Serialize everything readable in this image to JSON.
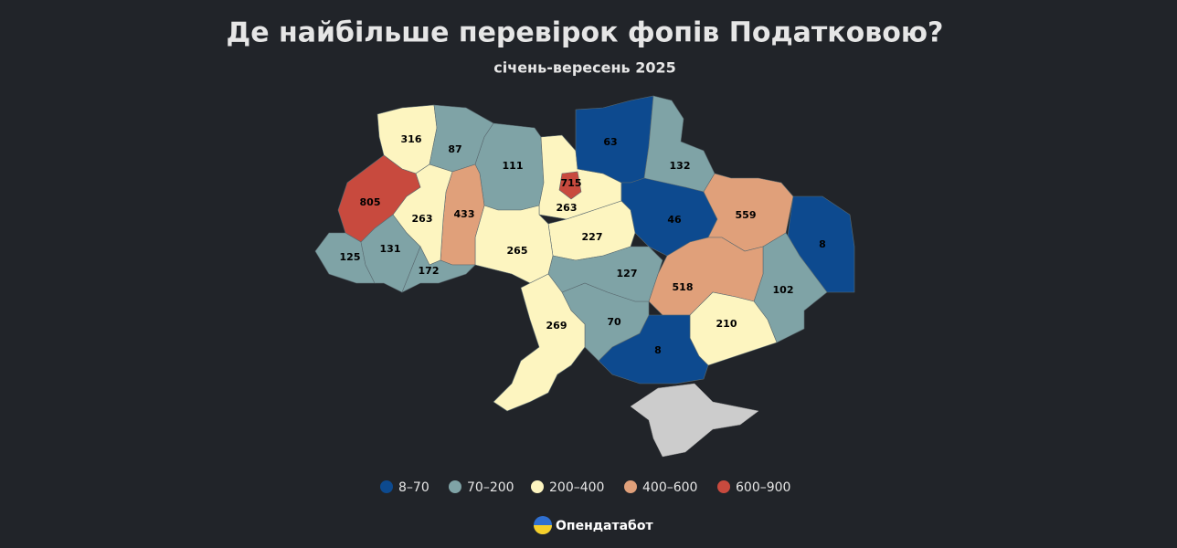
{
  "title": "Де найбільше перевірок фопів Податковою?",
  "subtitle": "січень-вересень 2025",
  "regions": [
    {
      "value": 316,
      "color": "#fdf5c0"
    },
    {
      "value": 87,
      "color": "#7fa3a6"
    },
    {
      "value": 111,
      "color": "#7fa3a6"
    },
    {
      "value": 263,
      "color": "#fdf5c0"
    },
    {
      "value": 715,
      "color": "#c84a3e"
    },
    {
      "value": 63,
      "color": "#0d4a8f"
    },
    {
      "value": 132,
      "color": "#7fa3a6"
    },
    {
      "value": 46,
      "color": "#0d4a8f"
    },
    {
      "value": 559,
      "color": "#e0a07a"
    },
    {
      "value": 8,
      "color": "#0d4a8f"
    },
    {
      "value": 102,
      "color": "#7fa3a6"
    },
    {
      "value": 518,
      "color": "#e0a07a"
    },
    {
      "value": 210,
      "color": "#fdf5c0"
    },
    {
      "value": 8,
      "color": "#0d4a8f"
    },
    {
      "value": 70,
      "color": "#7fa3a6"
    },
    {
      "value": 227,
      "color": "#fdf5c0"
    },
    {
      "value": 127,
      "color": "#7fa3a6"
    },
    {
      "value": 265,
      "color": "#fdf5c0"
    },
    {
      "value": 269,
      "color": "#fdf5c0"
    },
    {
      "value": 433,
      "color": "#e0a07a"
    },
    {
      "value": 263,
      "color": "#fdf5c0"
    },
    {
      "value": 805,
      "color": "#c84a3e"
    },
    {
      "value": 125,
      "color": "#7fa3a6"
    },
    {
      "value": 131,
      "color": "#7fa3a6"
    },
    {
      "value": 172,
      "color": "#7fa3a6"
    }
  ],
  "legend": [
    {
      "label": "8–70",
      "color": "#0d4a8f"
    },
    {
      "label": "70–200",
      "color": "#7fa3a6"
    },
    {
      "label": "200–400",
      "color": "#fdf5c0"
    },
    {
      "label": "400–600",
      "color": "#e0a07a"
    },
    {
      "label": "600–900",
      "color": "#c84a3e"
    }
  ],
  "source": "Опендатабот"
}
